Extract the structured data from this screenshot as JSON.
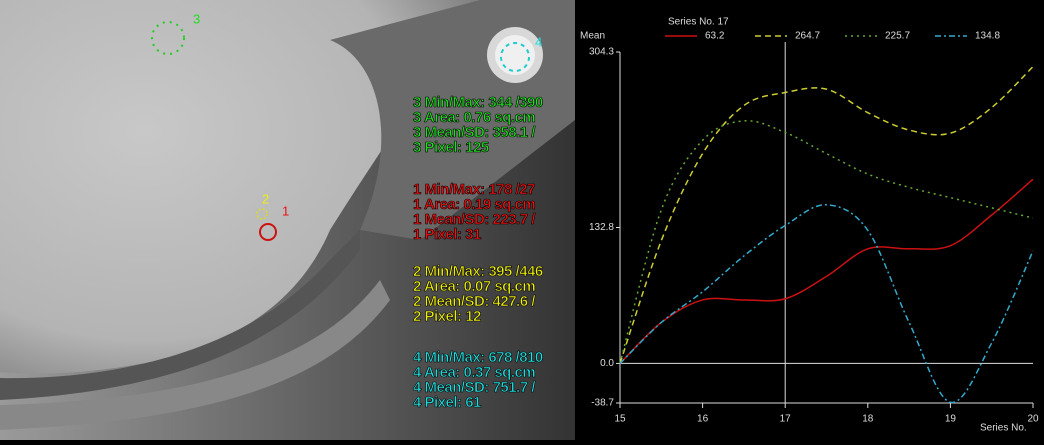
{
  "image_panel": {
    "roi_labels": [
      "3",
      "2",
      "1",
      "4"
    ],
    "stats": [
      {
        "color": "#22dd22",
        "lines": [
          "3 Min/Max: 344 /390",
          "3 Area: 0.76 sq.cm",
          "3 Mean/SD: 358.1 /",
          "3 Pixel: 125"
        ]
      },
      {
        "color": "#ee1111",
        "lines": [
          "1 Min/Max: 178 /27",
          "1 Area: 0.19 sq.cm",
          "1 Mean/SD: 223.7 /",
          "1 Pixel: 31"
        ]
      },
      {
        "color": "#eeee11",
        "lines": [
          "2 Min/Max: 395 /446",
          "2 Area: 0.07 sq.cm",
          "2 Mean/SD: 427.6 /",
          "2 Pixel: 12"
        ]
      },
      {
        "color": "#22dddd",
        "lines": [
          "4 Min/Max: 678 /810",
          "4 Area: 0.37 sq.cm",
          "4 Mean/SD: 751.7 /",
          "4 Pixel: 61"
        ]
      }
    ]
  },
  "chart_data": {
    "type": "line",
    "legend_title": "Series No. 17",
    "y_label": "Mean",
    "x_label": "Series No.",
    "x": [
      15,
      15.5,
      16,
      16.5,
      17,
      17.5,
      18,
      18.5,
      19,
      19.5,
      20
    ],
    "xlim": [
      15,
      20
    ],
    "xticks": [
      15,
      16,
      17,
      18,
      19,
      20
    ],
    "ylim": [
      -38.7,
      304.3
    ],
    "yticks": [
      -38.7,
      {
        "value": 0,
        "label": "0.0"
      },
      132.8,
      304.3
    ],
    "series": [
      {
        "name": "63.2",
        "color": "#cc1111",
        "dash": "none",
        "values": [
          0,
          40,
          62,
          62,
          63.2,
          85,
          112,
          112,
          115,
          145,
          180
        ]
      },
      {
        "name": "264.7",
        "color": "#cccc33",
        "dash": "6 4",
        "values": [
          0,
          120,
          205,
          252,
          264.7,
          268,
          245,
          228,
          225,
          250,
          290
        ]
      },
      {
        "name": "225.7",
        "color": "#66aa33",
        "dash": "2 4",
        "values": [
          0,
          150,
          218,
          237,
          225.7,
          205,
          185,
          172,
          162,
          152,
          142
        ]
      },
      {
        "name": "134.8",
        "color": "#33aacc",
        "dash": "6 3 2 3",
        "values": [
          0,
          40,
          70,
          105,
          134.8,
          155,
          130,
          40,
          -38,
          20,
          110
        ]
      }
    ]
  }
}
